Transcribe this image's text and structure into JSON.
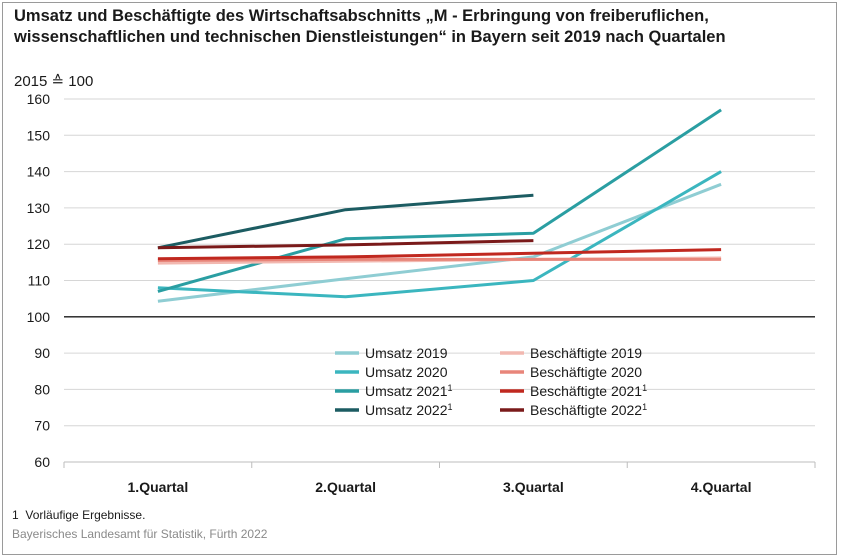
{
  "chart_data": {
    "type": "line",
    "title_line1": "Umsatz und Beschäftigte des Wirtschaftsabschnitts „M - Erbringung von freiberuflichen,",
    "title_line2": "wissenschaftlichen und technischen Dienstleistungen“ in Bayern seit 2019 nach Quartalen",
    "unit_label": "2015 ≙ 100",
    "categories": [
      "1.Quartal",
      "2.Quartal",
      "3.Quartal",
      "4.Quartal"
    ],
    "ylim": [
      60,
      160
    ],
    "yticks": [
      60,
      70,
      80,
      90,
      100,
      110,
      120,
      130,
      140,
      150,
      160
    ],
    "baseline": 100,
    "grid": true,
    "legend_position": "bottom-center",
    "series": [
      {
        "name": "Umsatz 2019",
        "footnote": "",
        "color": "#8fcdd3",
        "values": [
          104.3,
          110.5,
          116.5,
          136.5
        ]
      },
      {
        "name": "Umsatz 2020",
        "footnote": "",
        "color": "#3bb6bf",
        "values": [
          108.0,
          105.5,
          110.0,
          140.0
        ]
      },
      {
        "name": "Umsatz 2021",
        "footnote": "1",
        "color": "#2a9ea2",
        "values": [
          107.0,
          121.5,
          123.0,
          157.0
        ]
      },
      {
        "name": "Umsatz 2022",
        "footnote": "1",
        "color": "#1c5c62",
        "values": [
          119.0,
          129.5,
          133.5,
          null
        ]
      },
      {
        "name": "Beschäftigte 2019",
        "footnote": "",
        "color": "#f2b8b0",
        "values": [
          114.8,
          115.3,
          115.8,
          116.2
        ]
      },
      {
        "name": "Beschäftigte 2020",
        "footnote": "",
        "color": "#e8857a",
        "values": [
          115.5,
          115.8,
          115.8,
          115.8
        ]
      },
      {
        "name": "Beschäftigte 2021",
        "footnote": "1",
        "color": "#c0281f",
        "values": [
          116.0,
          116.5,
          117.5,
          118.5
        ]
      },
      {
        "name": "Beschäftigte 2022",
        "footnote": "1",
        "color": "#7a1a1a",
        "values": [
          119.0,
          119.8,
          121.0,
          null
        ]
      }
    ]
  },
  "footnote": {
    "mark": "1",
    "text": "Vorläufige Ergebnisse."
  },
  "source": "Bayerisches Landesamt für Statistik, Fürth 2022"
}
